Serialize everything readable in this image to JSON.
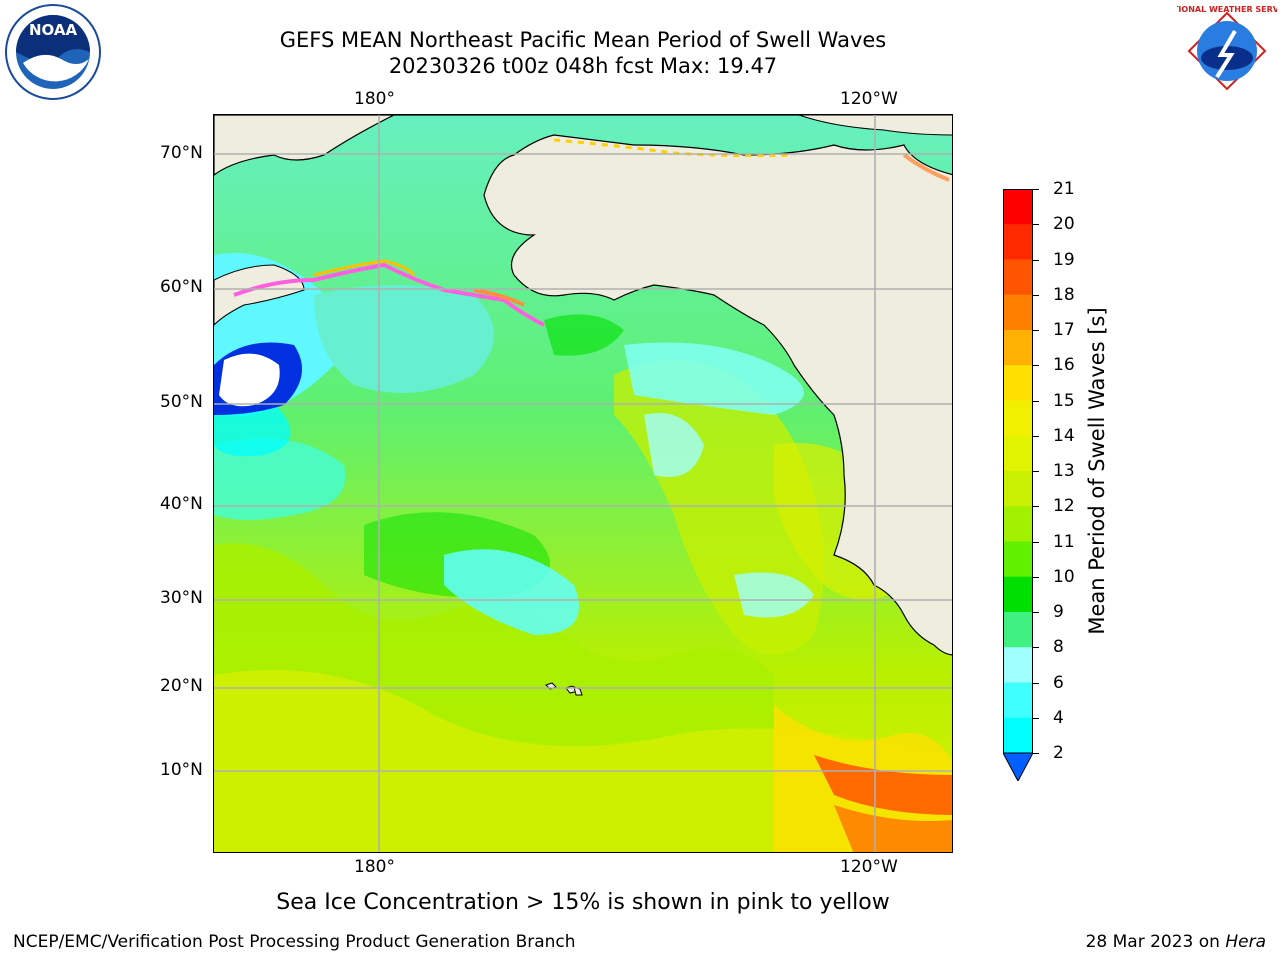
{
  "title": {
    "line1": "GEFS MEAN Northeast Pacific Mean Period of Swell Waves",
    "line2": "20230326 t00z 048h fcst   Max: 19.47"
  },
  "map": {
    "top_lon_labels": [
      "180°",
      "120°W"
    ],
    "bottom_lon_labels": [
      "180°",
      "120°W"
    ],
    "lat_labels": [
      "70°N",
      "60°N",
      "50°N",
      "40°N",
      "30°N",
      "20°N",
      "10°N"
    ],
    "land_color": "#efedde",
    "grid_color": "#b0b0b0"
  },
  "colorbar": {
    "title": "Mean Period of Swell Waves [s]",
    "levels": [
      "21",
      "20",
      "19",
      "18",
      "17",
      "16",
      "15",
      "14",
      "13",
      "12",
      "11",
      "10",
      "9",
      "8",
      "6",
      "4",
      "2"
    ],
    "colors": [
      "#ff0000",
      "#ff2a00",
      "#ff5500",
      "#ff8000",
      "#ffb000",
      "#ffe000",
      "#f0f000",
      "#e0f400",
      "#c8f000",
      "#a0f000",
      "#60f000",
      "#00e000",
      "#40f080",
      "#a0ffff",
      "#40ffff",
      "#00ffff",
      "#00a0ff",
      "#0060ff"
    ]
  },
  "notes": {
    "sea_ice": "Sea Ice Concentration > 15% is shown in pink to yellow",
    "credit_left": "NCEP/EMC/Verification Post Processing Product Generation Branch",
    "credit_date": "28 Mar 2023 on ",
    "credit_host": "Hera"
  },
  "logos": {
    "noaa_text": "NOAA",
    "nws_text": "NATIONAL WEATHER SERVICE"
  }
}
